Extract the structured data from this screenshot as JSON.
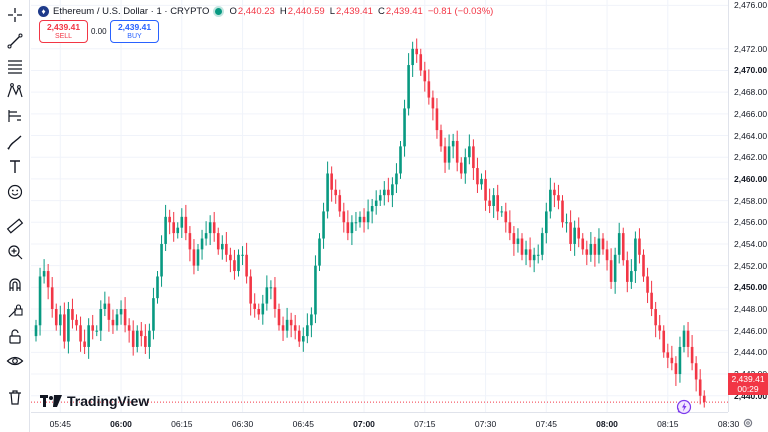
{
  "legend": {
    "symbol_icon_char": "♦",
    "title": "Ethereum / U.S. Dollar · 1 · CRYPTO",
    "ohlc": [
      {
        "k": "O",
        "v": "2,440.23"
      },
      {
        "k": "H",
        "v": "2,440.59"
      },
      {
        "k": "L",
        "v": "2,439.41"
      },
      {
        "k": "C",
        "v": "2,439.41"
      }
    ],
    "change": "−0.81 (−0.03%)"
  },
  "trade": {
    "sell_price": "2,439.41",
    "sell_label": "SELL",
    "spread": "0.00",
    "buy_price": "2,439.41",
    "buy_label": "BUY"
  },
  "price_axis": [
    {
      "label": "2,476.00",
      "value": 2476,
      "bold": false
    },
    {
      "label": "2,472.00",
      "value": 2472,
      "bold": false
    },
    {
      "label": "2,470.00",
      "value": 2470,
      "bold": true
    },
    {
      "label": "2,468.00",
      "value": 2468,
      "bold": false
    },
    {
      "label": "2,466.00",
      "value": 2466,
      "bold": false
    },
    {
      "label": "2,464.00",
      "value": 2464,
      "bold": false
    },
    {
      "label": "2,462.00",
      "value": 2462,
      "bold": false
    },
    {
      "label": "2,460.00",
      "value": 2460,
      "bold": true
    },
    {
      "label": "2,458.00",
      "value": 2458,
      "bold": false
    },
    {
      "label": "2,456.00",
      "value": 2456,
      "bold": false
    },
    {
      "label": "2,454.00",
      "value": 2454,
      "bold": false
    },
    {
      "label": "2,452.00",
      "value": 2452,
      "bold": false
    },
    {
      "label": "2,450.00",
      "value": 2450,
      "bold": true
    },
    {
      "label": "2,448.00",
      "value": 2448,
      "bold": false
    },
    {
      "label": "2,446.00",
      "value": 2446,
      "bold": false
    },
    {
      "label": "2,444.00",
      "value": 2444,
      "bold": false
    },
    {
      "label": "2,442.00",
      "value": 2442,
      "bold": false
    },
    {
      "label": "2,440.00",
      "value": 2440,
      "bold": true
    }
  ],
  "current_price": {
    "price": "2,439.41",
    "countdown": "00:29",
    "value": 2439.41
  },
  "time_axis": [
    {
      "label": "05:45",
      "bold": false
    },
    {
      "label": "06:00",
      "bold": true
    },
    {
      "label": "06:15",
      "bold": false
    },
    {
      "label": "06:30",
      "bold": false
    },
    {
      "label": "06:45",
      "bold": false
    },
    {
      "label": "07:00",
      "bold": true
    },
    {
      "label": "07:15",
      "bold": false
    },
    {
      "label": "07:30",
      "bold": false
    },
    {
      "label": "07:45",
      "bold": false
    },
    {
      "label": "08:00",
      "bold": true
    },
    {
      "label": "08:15",
      "bold": false
    },
    {
      "label": "08:30",
      "bold": false
    }
  ],
  "brand": {
    "name": "TradingView"
  },
  "colors": {
    "up": "#089981",
    "down": "#f23645",
    "grid": "#f0f3fa"
  },
  "toolbar_icons": [
    "crosshair-icon",
    "trend-line-icon",
    "fib-icon",
    "pattern-icon",
    "forecast-icon",
    "brush-icon",
    "text-icon",
    "emoji-icon",
    "ruler-icon",
    "zoom-in-icon",
    "magnet-icon",
    "lock-drawings-icon",
    "unlock-icon",
    "eye-icon",
    "trash-icon"
  ],
  "chart_data": {
    "type": "candlestick",
    "x": [
      "05:39",
      "05:40",
      "05:41",
      "05:42",
      "05:43",
      "05:44",
      "05:45",
      "05:46",
      "05:47",
      "05:48",
      "05:49",
      "05:50",
      "05:51",
      "05:52",
      "05:53",
      "05:54",
      "05:55",
      "05:56",
      "05:57",
      "05:58",
      "05:59",
      "06:00",
      "06:01",
      "06:02",
      "06:03",
      "06:04",
      "06:05",
      "06:06",
      "06:07",
      "06:08",
      "06:09",
      "06:10",
      "06:11",
      "06:12",
      "06:13",
      "06:14",
      "06:15",
      "06:16",
      "06:17",
      "06:18",
      "06:19",
      "06:20",
      "06:21",
      "06:22",
      "06:23",
      "06:24",
      "06:25",
      "06:26",
      "06:27",
      "06:28",
      "06:29",
      "06:30",
      "06:31",
      "06:32",
      "06:33",
      "06:34",
      "06:35",
      "06:36",
      "06:37",
      "06:38",
      "06:39",
      "06:40",
      "06:41",
      "06:42",
      "06:43",
      "06:44",
      "06:45",
      "06:46",
      "06:47",
      "06:48",
      "06:49",
      "06:50",
      "06:51",
      "06:52",
      "06:53",
      "06:54",
      "06:55",
      "06:56",
      "06:57",
      "06:58",
      "06:59",
      "07:00",
      "07:01",
      "07:02",
      "07:03",
      "07:04",
      "07:05",
      "07:06",
      "07:07",
      "07:08",
      "07:09",
      "07:10",
      "07:11",
      "07:12",
      "07:13",
      "07:14",
      "07:15",
      "07:16",
      "07:17",
      "07:18",
      "07:19",
      "07:20",
      "07:21",
      "07:22",
      "07:23",
      "07:24",
      "07:25",
      "07:26",
      "07:27",
      "07:28",
      "07:29",
      "07:30",
      "07:31",
      "07:32",
      "07:33",
      "07:34",
      "07:35",
      "07:36",
      "07:37",
      "07:38",
      "07:39",
      "07:40",
      "07:41",
      "07:42",
      "07:43",
      "07:44",
      "07:45",
      "07:46",
      "07:47",
      "07:48",
      "07:49",
      "07:50",
      "07:51",
      "07:52",
      "07:53",
      "07:54",
      "07:55",
      "07:56",
      "07:57",
      "07:58",
      "07:59",
      "08:00",
      "08:01",
      "08:02",
      "08:03",
      "08:04",
      "08:05",
      "08:06",
      "08:07",
      "08:08",
      "08:09",
      "08:10",
      "08:11",
      "08:12",
      "08:13",
      "08:14",
      "08:15",
      "08:16",
      "08:17",
      "08:18",
      "08:19",
      "08:20",
      "08:21",
      "08:22",
      "08:23",
      "08:24"
    ],
    "close": [
      2446.5,
      2451.0,
      2451.5,
      2450.0,
      2448.0,
      2446.5,
      2447.5,
      2445.0,
      2448.0,
      2447.0,
      2446.5,
      2445.0,
      2444.5,
      2446.5,
      2446.0,
      2446.0,
      2448.0,
      2448.5,
      2447.0,
      2446.5,
      2447.5,
      2448.0,
      2446.5,
      2446.0,
      2444.5,
      2446.0,
      2445.5,
      2444.5,
      2446.0,
      2449.0,
      2451.0,
      2454.0,
      2456.5,
      2456.0,
      2455.0,
      2455.5,
      2456.5,
      2455.0,
      2453.5,
      2452.0,
      2453.5,
      2454.5,
      2455.0,
      2456.0,
      2455.0,
      2453.5,
      2454.0,
      2453.0,
      2452.5,
      2451.5,
      2453.0,
      2453.0,
      2451.0,
      2448.5,
      2448.0,
      2447.5,
      2448.5,
      2450.0,
      2450.0,
      2448.0,
      2446.5,
      2446.0,
      2447.0,
      2446.5,
      2446.0,
      2445.0,
      2445.5,
      2446.5,
      2447.5,
      2452.0,
      2454.5,
      2457.0,
      2460.5,
      2459.0,
      2458.5,
      2457.0,
      2456.0,
      2455.0,
      2456.0,
      2456.0,
      2456.5,
      2456.0,
      2457.0,
      2457.5,
      2458.0,
      2458.5,
      2459.0,
      2458.5,
      2459.5,
      2460.5,
      2463.0,
      2466.5,
      2470.5,
      2472.0,
      2471.5,
      2470.0,
      2469.0,
      2467.5,
      2466.5,
      2464.5,
      2463.0,
      2461.5,
      2463.0,
      2463.5,
      2461.5,
      2460.5,
      2462.0,
      2463.0,
      2461.0,
      2459.5,
      2460.0,
      2458.0,
      2457.5,
      2458.5,
      2457.0,
      2457.0,
      2456.0,
      2455.0,
      2454.0,
      2454.5,
      2453.0,
      2453.5,
      2452.5,
      2453.0,
      2453.0,
      2455.0,
      2457.0,
      2459.0,
      2458.5,
      2458.0,
      2456.0,
      2456.0,
      2454.0,
      2455.5,
      2454.5,
      2453.5,
      2453.0,
      2454.0,
      2453.0,
      2454.5,
      2453.5,
      2452.5,
      2450.5,
      2453.0,
      2455.0,
      2452.5,
      2450.5,
      2451.5,
      2454.5,
      2453.0,
      2451.0,
      2449.5,
      2448.0,
      2446.5,
      2446.0,
      2444.0,
      2443.5,
      2443.0,
      2442.0,
      2444.5,
      2446.0,
      2444.5,
      2443.0,
      2441.5,
      2440.0,
      2439.41
    ],
    "ylim": [
      2438.5,
      2476.5
    ]
  }
}
